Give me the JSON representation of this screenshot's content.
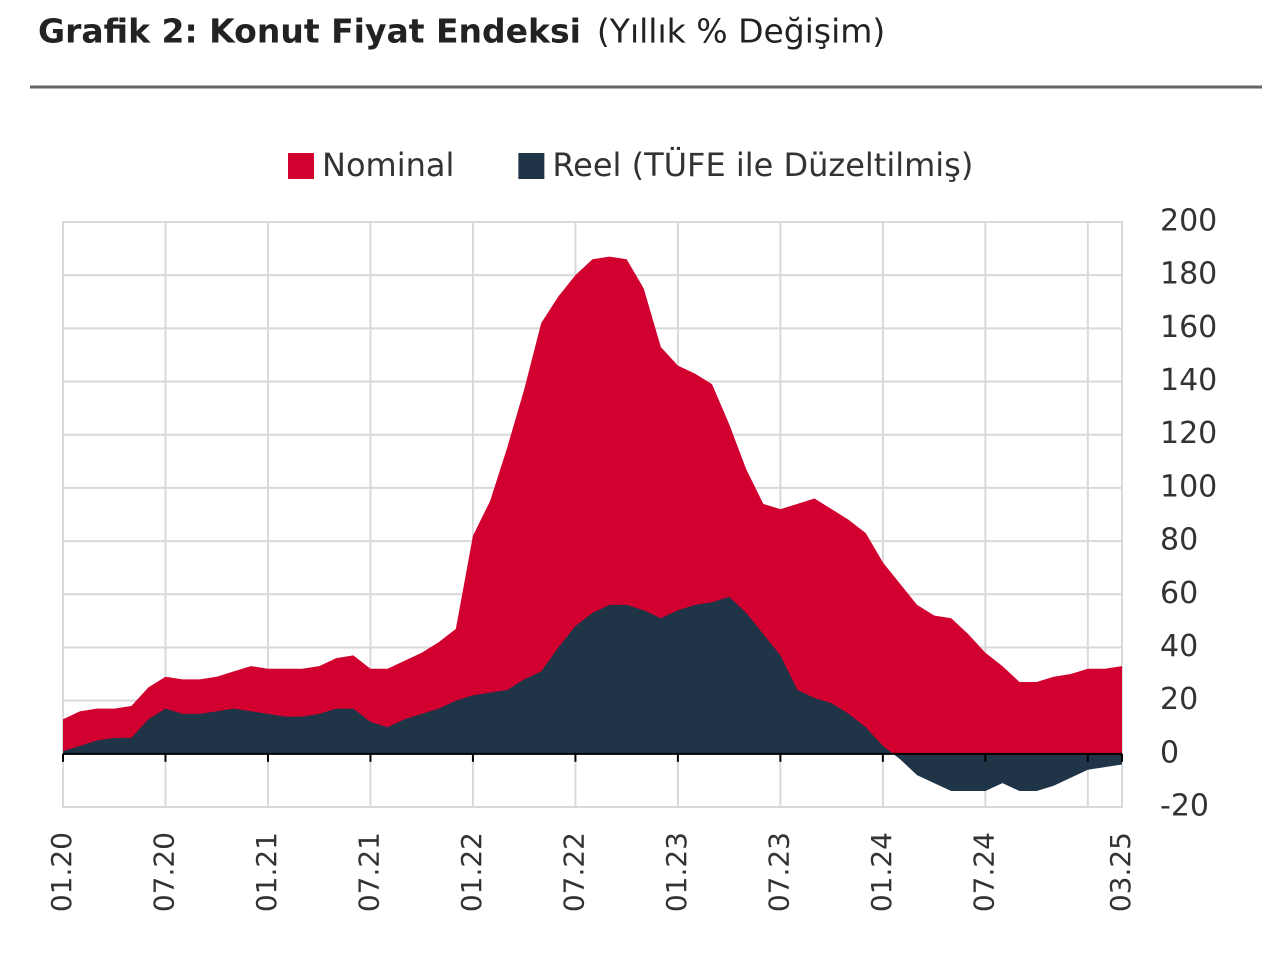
{
  "chart_data": {
    "type": "area",
    "title": "Grafik 2: Konut Fiyat Endeksi",
    "subtitle": "(Yıllık % Değişim)",
    "categories": [
      "01.20",
      null,
      null,
      null,
      null,
      null,
      "07.20",
      null,
      null,
      null,
      null,
      null,
      "01.21",
      null,
      null,
      null,
      null,
      null,
      "07.21",
      null,
      null,
      null,
      null,
      null,
      "01.22",
      null,
      null,
      null,
      null,
      null,
      "07.22",
      null,
      null,
      null,
      null,
      null,
      "01.23",
      null,
      null,
      null,
      null,
      null,
      "07.23",
      null,
      null,
      null,
      null,
      null,
      "01.24",
      null,
      null,
      null,
      null,
      null,
      "07.24",
      null,
      null,
      null,
      null,
      null,
      null,
      null,
      "03.25"
    ],
    "series": [
      {
        "name": "Nominal",
        "color": "#d1002f",
        "values": [
          13,
          16,
          17,
          17,
          18,
          25,
          29,
          28,
          28,
          29,
          31,
          33,
          32,
          32,
          32,
          33,
          36,
          37,
          32,
          32,
          35,
          38,
          42,
          47,
          82,
          95,
          115,
          137,
          162,
          172,
          180,
          186,
          187,
          186,
          175,
          153,
          146,
          143,
          139,
          124,
          107,
          94,
          92,
          94,
          96,
          92,
          88,
          83,
          72,
          64,
          56,
          52,
          51,
          45,
          38,
          33,
          27,
          27,
          29,
          30,
          32,
          32,
          33
        ]
      },
      {
        "name": "Reel (TÜFE ile Düzeltilmiş)",
        "color": "#1f3447",
        "values": [
          1,
          3,
          5,
          6,
          6,
          13,
          17,
          15,
          15,
          16,
          17,
          16,
          15,
          14,
          14,
          15,
          17,
          17,
          12,
          10,
          13,
          15,
          17,
          20,
          22,
          23,
          24,
          28,
          31,
          40,
          48,
          53,
          56,
          56,
          54,
          51,
          54,
          56,
          57,
          59,
          53,
          45,
          37,
          24,
          21,
          19,
          15,
          10,
          3,
          -2,
          -8,
          -11,
          -14,
          -14,
          -14,
          -11,
          -14,
          -14,
          -12,
          -9,
          -6,
          -5,
          -4
        ]
      }
    ],
    "ylim": [
      -20,
      200
    ],
    "yticks": [
      200,
      180,
      160,
      140,
      120,
      100,
      80,
      60,
      40,
      20,
      0,
      -20
    ],
    "grid": true,
    "legend": "top"
  }
}
